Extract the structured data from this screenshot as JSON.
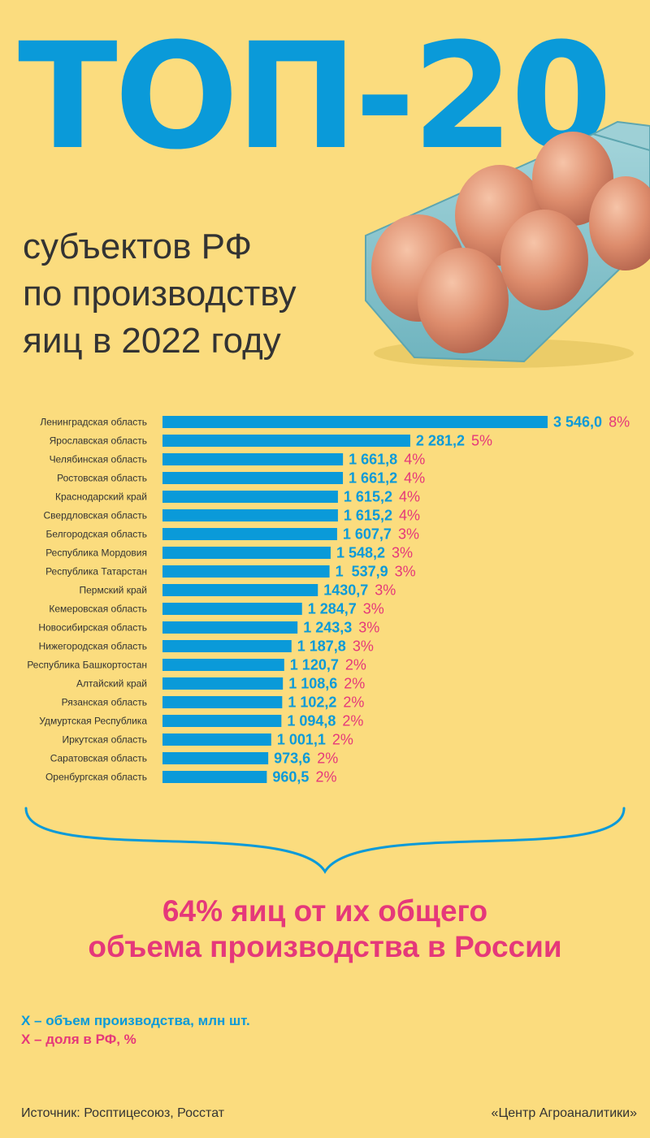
{
  "header": {
    "title": "ТОП-20",
    "subtitle_lines": [
      "субъектов РФ",
      "по производству",
      "яиц в 2022 году"
    ]
  },
  "colors": {
    "background": "#fbdc7e",
    "bar": "#0a9ad9",
    "value_text": "#0a9ad9",
    "share_text": "#e5387a",
    "summary_text": "#e5387a",
    "egg_tray": "#86c6ce"
  },
  "illustration": {
    "name": "eggs-in-tray-icon"
  },
  "chart_data": {
    "type": "bar",
    "orientation": "horizontal",
    "categories": [
      "Ленинградская область",
      "Ярославская область",
      "Челябинская область",
      "Ростовская область",
      "Краснодарский край",
      "Свердловская область",
      "Белгородская область",
      "Республика Мордовия",
      "Республика Татарстан",
      "Пермский край",
      "Кемеровская область",
      "Новосибирская область",
      "Нижегородская область",
      "Республика Башкортостан",
      "Алтайский край",
      "Рязанская область",
      "Удмуртская Республика",
      "Иркутская область",
      "Саратовская область",
      "Оренбургская область"
    ],
    "values": [
      3546.0,
      2281.2,
      1661.8,
      1661.2,
      1615.2,
      1615.2,
      1607.7,
      1548.2,
      1537.9,
      1430.7,
      1284.7,
      1243.3,
      1187.8,
      1120.7,
      1108.6,
      1102.2,
      1094.8,
      1001.1,
      973.6,
      960.5
    ],
    "value_labels": [
      "3 546,0",
      "2 281,2",
      "1 661,8",
      "1 661,2",
      "1 615,2",
      "1 615,2",
      "1 607,7",
      "1 548,2",
      "1  537,9",
      "1430,7",
      "1 284,7",
      "1 243,3",
      "1 187,8",
      "1 120,7",
      "1 108,6",
      "1 102,2",
      "1 094,8",
      "1 001,1",
      "973,6",
      "960,5"
    ],
    "share_labels": [
      "8%",
      "5%",
      "4%",
      "4%",
      "4%",
      "4%",
      "3%",
      "3%",
      "3%",
      "3%",
      "3%",
      "3%",
      "3%",
      "2%",
      "2%",
      "2%",
      "2%",
      "2%",
      "2%",
      "2%"
    ],
    "grid": false,
    "legend": "bottom-left"
  },
  "summary": {
    "lines": [
      "64% яиц от их общего",
      "объема производства в России"
    ]
  },
  "legend": {
    "volume": "Х – объем производства, млн шт.",
    "share": "Х – доля в РФ, %"
  },
  "footer": {
    "source": "Источник: Росптицесоюз, Росстат",
    "credit": "«Центр Агроаналитики»"
  }
}
